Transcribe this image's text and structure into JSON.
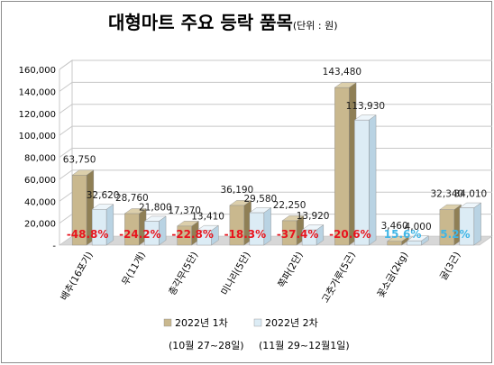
{
  "chart_data": {
    "type": "bar",
    "title": "대형마트 주요 등락 품목",
    "unit": "(단위 : 원)",
    "categories": [
      "배추(16포기)",
      "무(11개)",
      "총각무(5단)",
      "미나리(5단)",
      "쪽파(2단)",
      "고춧가루(5근)",
      "꽃소금(2kg)",
      "굴(3근)"
    ],
    "series": [
      {
        "name": "2022년 1차",
        "period": "(10월 27~28일)",
        "values": [
          63750,
          28760,
          17370,
          36190,
          22250,
          143480,
          3460,
          32340
        ],
        "labels": [
          "63,750",
          "28,760",
          "17,370",
          "36,190",
          "22,250",
          "143,480",
          "3,460",
          "32,340"
        ]
      },
      {
        "name": "2022년 2차",
        "period": "(11월 29~12월1일)",
        "values": [
          32620,
          21800,
          13410,
          29580,
          13920,
          113930,
          4000,
          34010
        ],
        "labels": [
          "32,620",
          "21,800",
          "13,410",
          "29,580",
          "13,920",
          "113,930",
          "4,000",
          "34,010"
        ]
      }
    ],
    "change_labels": [
      "-48.8%",
      "-24.2%",
      "-22.8%",
      "-18.3%",
      "-37.4%",
      "-20.6%",
      "15.6%",
      "5.2%"
    ],
    "change_direction": [
      "down",
      "down",
      "down",
      "down",
      "down",
      "down",
      "up",
      "up"
    ],
    "y_ticks": [
      0,
      20000,
      40000,
      60000,
      80000,
      100000,
      120000,
      140000,
      160000
    ],
    "y_tick_labels": [
      "-",
      "20,000",
      "40,000",
      "60,000",
      "80,000",
      "100,000",
      "120,000",
      "140,000",
      "160,000"
    ],
    "ylim": [
      0,
      160000
    ],
    "grid": true,
    "legend_position": "bottom",
    "colors": {
      "series1_front": "#c9b88e",
      "series1_side": "#8f7f55",
      "series1_top": "#dccfab",
      "series2_front": "#dcecf5",
      "series2_side": "#b9d3e3",
      "series2_top": "#eef6fb",
      "down_change": "#e8141e",
      "up_change": "#41b6e6",
      "grid": "#c8c8c8",
      "floor": "#d7d7d7"
    }
  }
}
